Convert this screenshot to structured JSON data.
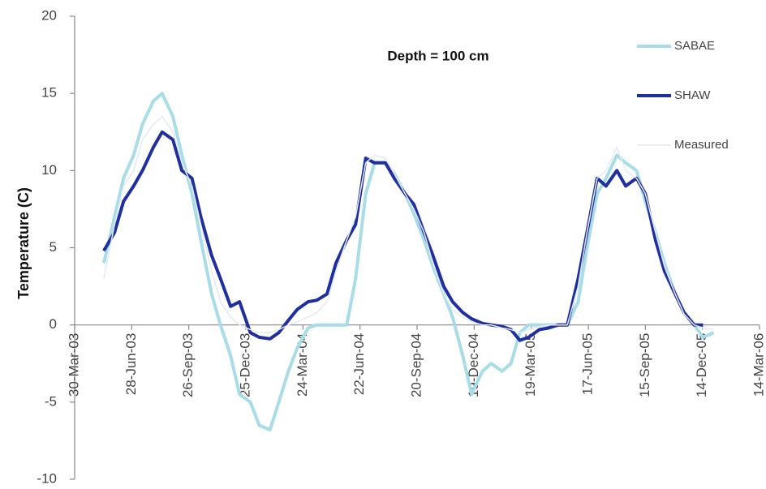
{
  "chart_data": {
    "type": "line",
    "annotation": "Depth = 100 cm",
    "y_label": "Temperature (C)",
    "x": [
      "2003-05-15",
      "2003-06-01",
      "2003-06-15",
      "2003-07-01",
      "2003-07-15",
      "2003-08-01",
      "2003-08-15",
      "2003-09-01",
      "2003-09-15",
      "2003-10-01",
      "2003-10-15",
      "2003-11-01",
      "2003-11-15",
      "2003-12-01",
      "2003-12-15",
      "2004-01-01",
      "2004-01-15",
      "2004-02-01",
      "2004-02-15",
      "2004-03-01",
      "2004-03-15",
      "2004-04-01",
      "2004-04-15",
      "2004-05-01",
      "2004-05-15",
      "2004-06-01",
      "2004-06-15",
      "2004-07-01",
      "2004-07-15",
      "2004-08-01",
      "2004-08-15",
      "2004-09-01",
      "2004-09-15",
      "2004-10-01",
      "2004-10-15",
      "2004-11-01",
      "2004-11-15",
      "2004-12-01",
      "2004-12-15",
      "2005-01-01",
      "2005-01-15",
      "2005-02-01",
      "2005-02-15",
      "2005-03-01",
      "2005-03-15",
      "2005-04-01",
      "2005-04-15",
      "2005-05-01",
      "2005-05-15",
      "2005-06-01",
      "2005-06-15",
      "2005-07-01",
      "2005-07-15",
      "2005-08-01",
      "2005-08-15",
      "2005-09-01",
      "2005-09-15",
      "2005-10-01",
      "2005-10-15",
      "2005-11-01",
      "2005-11-15",
      "2005-12-01",
      "2005-12-15",
      "2006-01-01"
    ],
    "series": [
      {
        "name": "SABAE",
        "color": "#a8dde8",
        "width": 4,
        "values": [
          4,
          7,
          9.5,
          11,
          13,
          14.5,
          15,
          13.5,
          11,
          8.5,
          5.5,
          2,
          0,
          -2,
          -4.5,
          -5,
          -6.5,
          -6.8,
          -5,
          -3,
          -1.5,
          -0.2,
          0,
          0,
          0,
          0,
          3,
          8.5,
          10.5,
          10.5,
          9.8,
          8.5,
          7.2,
          5.5,
          3.8,
          2,
          0.5,
          -2,
          -4.5,
          -3,
          -2.5,
          -3,
          -2.5,
          -0.5,
          0,
          0,
          0,
          0,
          0,
          1.5,
          5,
          8.5,
          9.5,
          11,
          10.5,
          10,
          8,
          6,
          4,
          2,
          0.8,
          0,
          -0.8,
          -0.5
        ]
      },
      {
        "name": "SHAW",
        "color": "#1f2fa0",
        "width": 4,
        "values": [
          4.8,
          6,
          8,
          9,
          10,
          11.5,
          12.5,
          12,
          10,
          9.5,
          7,
          4.5,
          3,
          1.2,
          1.5,
          -0.5,
          -0.8,
          -0.9,
          -0.5,
          0.3,
          1,
          1.5,
          1.6,
          2,
          4,
          5.5,
          6.5,
          10.8,
          10.5,
          10.5,
          9.5,
          8.5,
          7.8,
          6,
          4.5,
          2.5,
          1.5,
          0.8,
          0.4,
          0.1,
          0,
          -0.1,
          -0.3,
          -1,
          -0.8,
          -0.3,
          -0.2,
          0,
          0,
          3,
          6,
          9.5,
          9,
          10,
          9,
          9.5,
          8.5,
          5.5,
          3.5,
          2,
          0.8,
          0,
          0,
          null
        ]
      },
      {
        "name": "Measured",
        "color": "#e4e9f4",
        "width": 1.5,
        "values": [
          3,
          6.5,
          9,
          10,
          12,
          13,
          13.5,
          12.5,
          10.5,
          9,
          6.5,
          3.5,
          1.5,
          0.5,
          0,
          -0.3,
          -0.5,
          -0.5,
          -0.3,
          0,
          0.2,
          0.5,
          0.8,
          1.5,
          3.5,
          5.5,
          7,
          10.5,
          11,
          10.8,
          9.8,
          8.5,
          7.5,
          6,
          4,
          2,
          1,
          0.5,
          0.2,
          0,
          0,
          -0.2,
          -0.3,
          -0.5,
          -0.3,
          -0.1,
          0,
          0,
          0,
          2.5,
          6,
          9.5,
          10,
          11.5,
          10,
          9.5,
          8.5,
          6,
          3.8,
          2,
          0.7,
          0,
          -0.2,
          -0.3
        ]
      }
    ],
    "xlim": [
      "2003-03-30",
      "2006-03-14"
    ],
    "xticks": [
      {
        "value": "2003-03-30",
        "label": "30-Mar-03"
      },
      {
        "value": "2003-06-28",
        "label": "28-Jun-03"
      },
      {
        "value": "2003-09-26",
        "label": "26-Sep-03"
      },
      {
        "value": "2003-12-25",
        "label": "25-Dec-03"
      },
      {
        "value": "2004-03-24",
        "label": "24-Mar-04"
      },
      {
        "value": "2004-06-22",
        "label": "22-Jun-04"
      },
      {
        "value": "2004-09-20",
        "label": "20-Sep-04"
      },
      {
        "value": "2004-12-19",
        "label": "19-Dec-04"
      },
      {
        "value": "2005-03-19",
        "label": "19-Mar-05"
      },
      {
        "value": "2005-06-17",
        "label": "17-Jun-05"
      },
      {
        "value": "2005-09-15",
        "label": "15-Sep-05"
      },
      {
        "value": "2005-12-14",
        "label": "14-Dec-05"
      },
      {
        "value": "2006-03-14",
        "label": "14-Mar-06"
      }
    ],
    "ylim": [
      -10,
      20
    ],
    "yticks": [
      -10,
      -5,
      0,
      5,
      10,
      15,
      20
    ],
    "legend": "top-right",
    "grid": false
  }
}
